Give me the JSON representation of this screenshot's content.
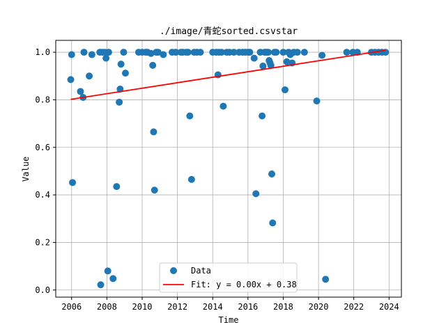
{
  "chart_data": {
    "type": "scatter",
    "title": "./image/青蛇sorted.csvstar",
    "xlabel": "Time",
    "ylabel": "Value",
    "xlim": [
      2005.1,
      2024.7
    ],
    "ylim": [
      -0.03,
      1.05
    ],
    "xticks": [
      2006,
      2008,
      2010,
      2012,
      2014,
      2016,
      2018,
      2020,
      2022,
      2024
    ],
    "yticks": [
      0.0,
      0.2,
      0.4,
      0.6,
      0.8,
      1.0
    ],
    "xtick_labels": [
      "2006",
      "2008",
      "2010",
      "2012",
      "2014",
      "2016",
      "2018",
      "2020",
      "2022",
      "2024"
    ],
    "ytick_labels": [
      "0.0",
      "0.2",
      "0.4",
      "0.6",
      "0.8",
      "1.0"
    ],
    "grid": true,
    "legend_position": "bottom-center",
    "series": [
      {
        "name": "Data",
        "kind": "scatter",
        "color": "#1f77b4",
        "points": [
          [
            2005.95,
            0.885
          ],
          [
            2006.0,
            0.99
          ],
          [
            2006.05,
            0.452
          ],
          [
            2006.5,
            0.835
          ],
          [
            2006.65,
            0.81
          ],
          [
            2006.7,
            1.0
          ],
          [
            2007.0,
            0.9
          ],
          [
            2007.15,
            0.99
          ],
          [
            2007.6,
            1.0
          ],
          [
            2007.65,
            0.022
          ],
          [
            2007.75,
            1.0
          ],
          [
            2007.9,
            1.0
          ],
          [
            2007.95,
            0.975
          ],
          [
            2008.05,
            0.08
          ],
          [
            2008.1,
            1.0
          ],
          [
            2008.35,
            0.048
          ],
          [
            2008.55,
            0.435
          ],
          [
            2008.7,
            0.79
          ],
          [
            2008.75,
            0.845
          ],
          [
            2008.8,
            0.95
          ],
          [
            2008.95,
            1.0
          ],
          [
            2009.05,
            0.912
          ],
          [
            2009.8,
            1.0
          ],
          [
            2010.0,
            1.0
          ],
          [
            2010.2,
            1.0
          ],
          [
            2010.3,
            1.0
          ],
          [
            2010.5,
            0.995
          ],
          [
            2010.6,
            0.945
          ],
          [
            2010.65,
            0.665
          ],
          [
            2010.7,
            0.42
          ],
          [
            2010.8,
            1.0
          ],
          [
            2010.9,
            1.0
          ],
          [
            2011.2,
            0.99
          ],
          [
            2011.7,
            1.0
          ],
          [
            2011.9,
            1.0
          ],
          [
            2012.2,
            1.0
          ],
          [
            2012.3,
            1.0
          ],
          [
            2012.5,
            1.0
          ],
          [
            2012.6,
            1.0
          ],
          [
            2012.7,
            0.732
          ],
          [
            2012.8,
            0.465
          ],
          [
            2012.95,
            1.0
          ],
          [
            2013.1,
            1.0
          ],
          [
            2013.3,
            1.0
          ],
          [
            2014.0,
            1.0
          ],
          [
            2014.2,
            1.0
          ],
          [
            2014.3,
            0.905
          ],
          [
            2014.35,
            1.0
          ],
          [
            2014.5,
            1.0
          ],
          [
            2014.6,
            0.773
          ],
          [
            2014.8,
            1.0
          ],
          [
            2014.95,
            1.0
          ],
          [
            2015.2,
            1.0
          ],
          [
            2015.5,
            1.0
          ],
          [
            2015.7,
            1.0
          ],
          [
            2015.85,
            1.0
          ],
          [
            2016.0,
            1.0
          ],
          [
            2016.1,
            1.0
          ],
          [
            2016.35,
            0.975
          ],
          [
            2016.45,
            0.405
          ],
          [
            2016.7,
            1.0
          ],
          [
            2016.8,
            0.732
          ],
          [
            2016.85,
            0.942
          ],
          [
            2016.95,
            1.0
          ],
          [
            2017.05,
            1.0
          ],
          [
            2017.15,
            1.0
          ],
          [
            2017.2,
            0.965
          ],
          [
            2017.25,
            0.955
          ],
          [
            2017.3,
            0.945
          ],
          [
            2017.35,
            0.488
          ],
          [
            2017.4,
            0.282
          ],
          [
            2017.5,
            1.0
          ],
          [
            2017.6,
            1.0
          ],
          [
            2018.0,
            1.0
          ],
          [
            2018.1,
            0.842
          ],
          [
            2018.2,
            0.96
          ],
          [
            2018.3,
            1.0
          ],
          [
            2018.4,
            0.99
          ],
          [
            2018.5,
            0.955
          ],
          [
            2018.6,
            1.0
          ],
          [
            2018.8,
            1.0
          ],
          [
            2019.2,
            1.0
          ],
          [
            2019.9,
            0.795
          ],
          [
            2020.2,
            0.987
          ],
          [
            2020.4,
            0.045
          ],
          [
            2021.6,
            1.0
          ],
          [
            2021.95,
            1.0
          ],
          [
            2022.2,
            1.0
          ],
          [
            2023.0,
            1.0
          ],
          [
            2023.2,
            1.0
          ],
          [
            2023.4,
            1.0
          ],
          [
            2023.6,
            1.0
          ],
          [
            2023.8,
            1.0
          ]
        ]
      },
      {
        "name": "Fit: y = 0.00x + 0.38",
        "kind": "line",
        "color": "#ff0000",
        "points": [
          [
            2005.95,
            0.802
          ],
          [
            2023.8,
            1.008
          ]
        ]
      }
    ]
  }
}
